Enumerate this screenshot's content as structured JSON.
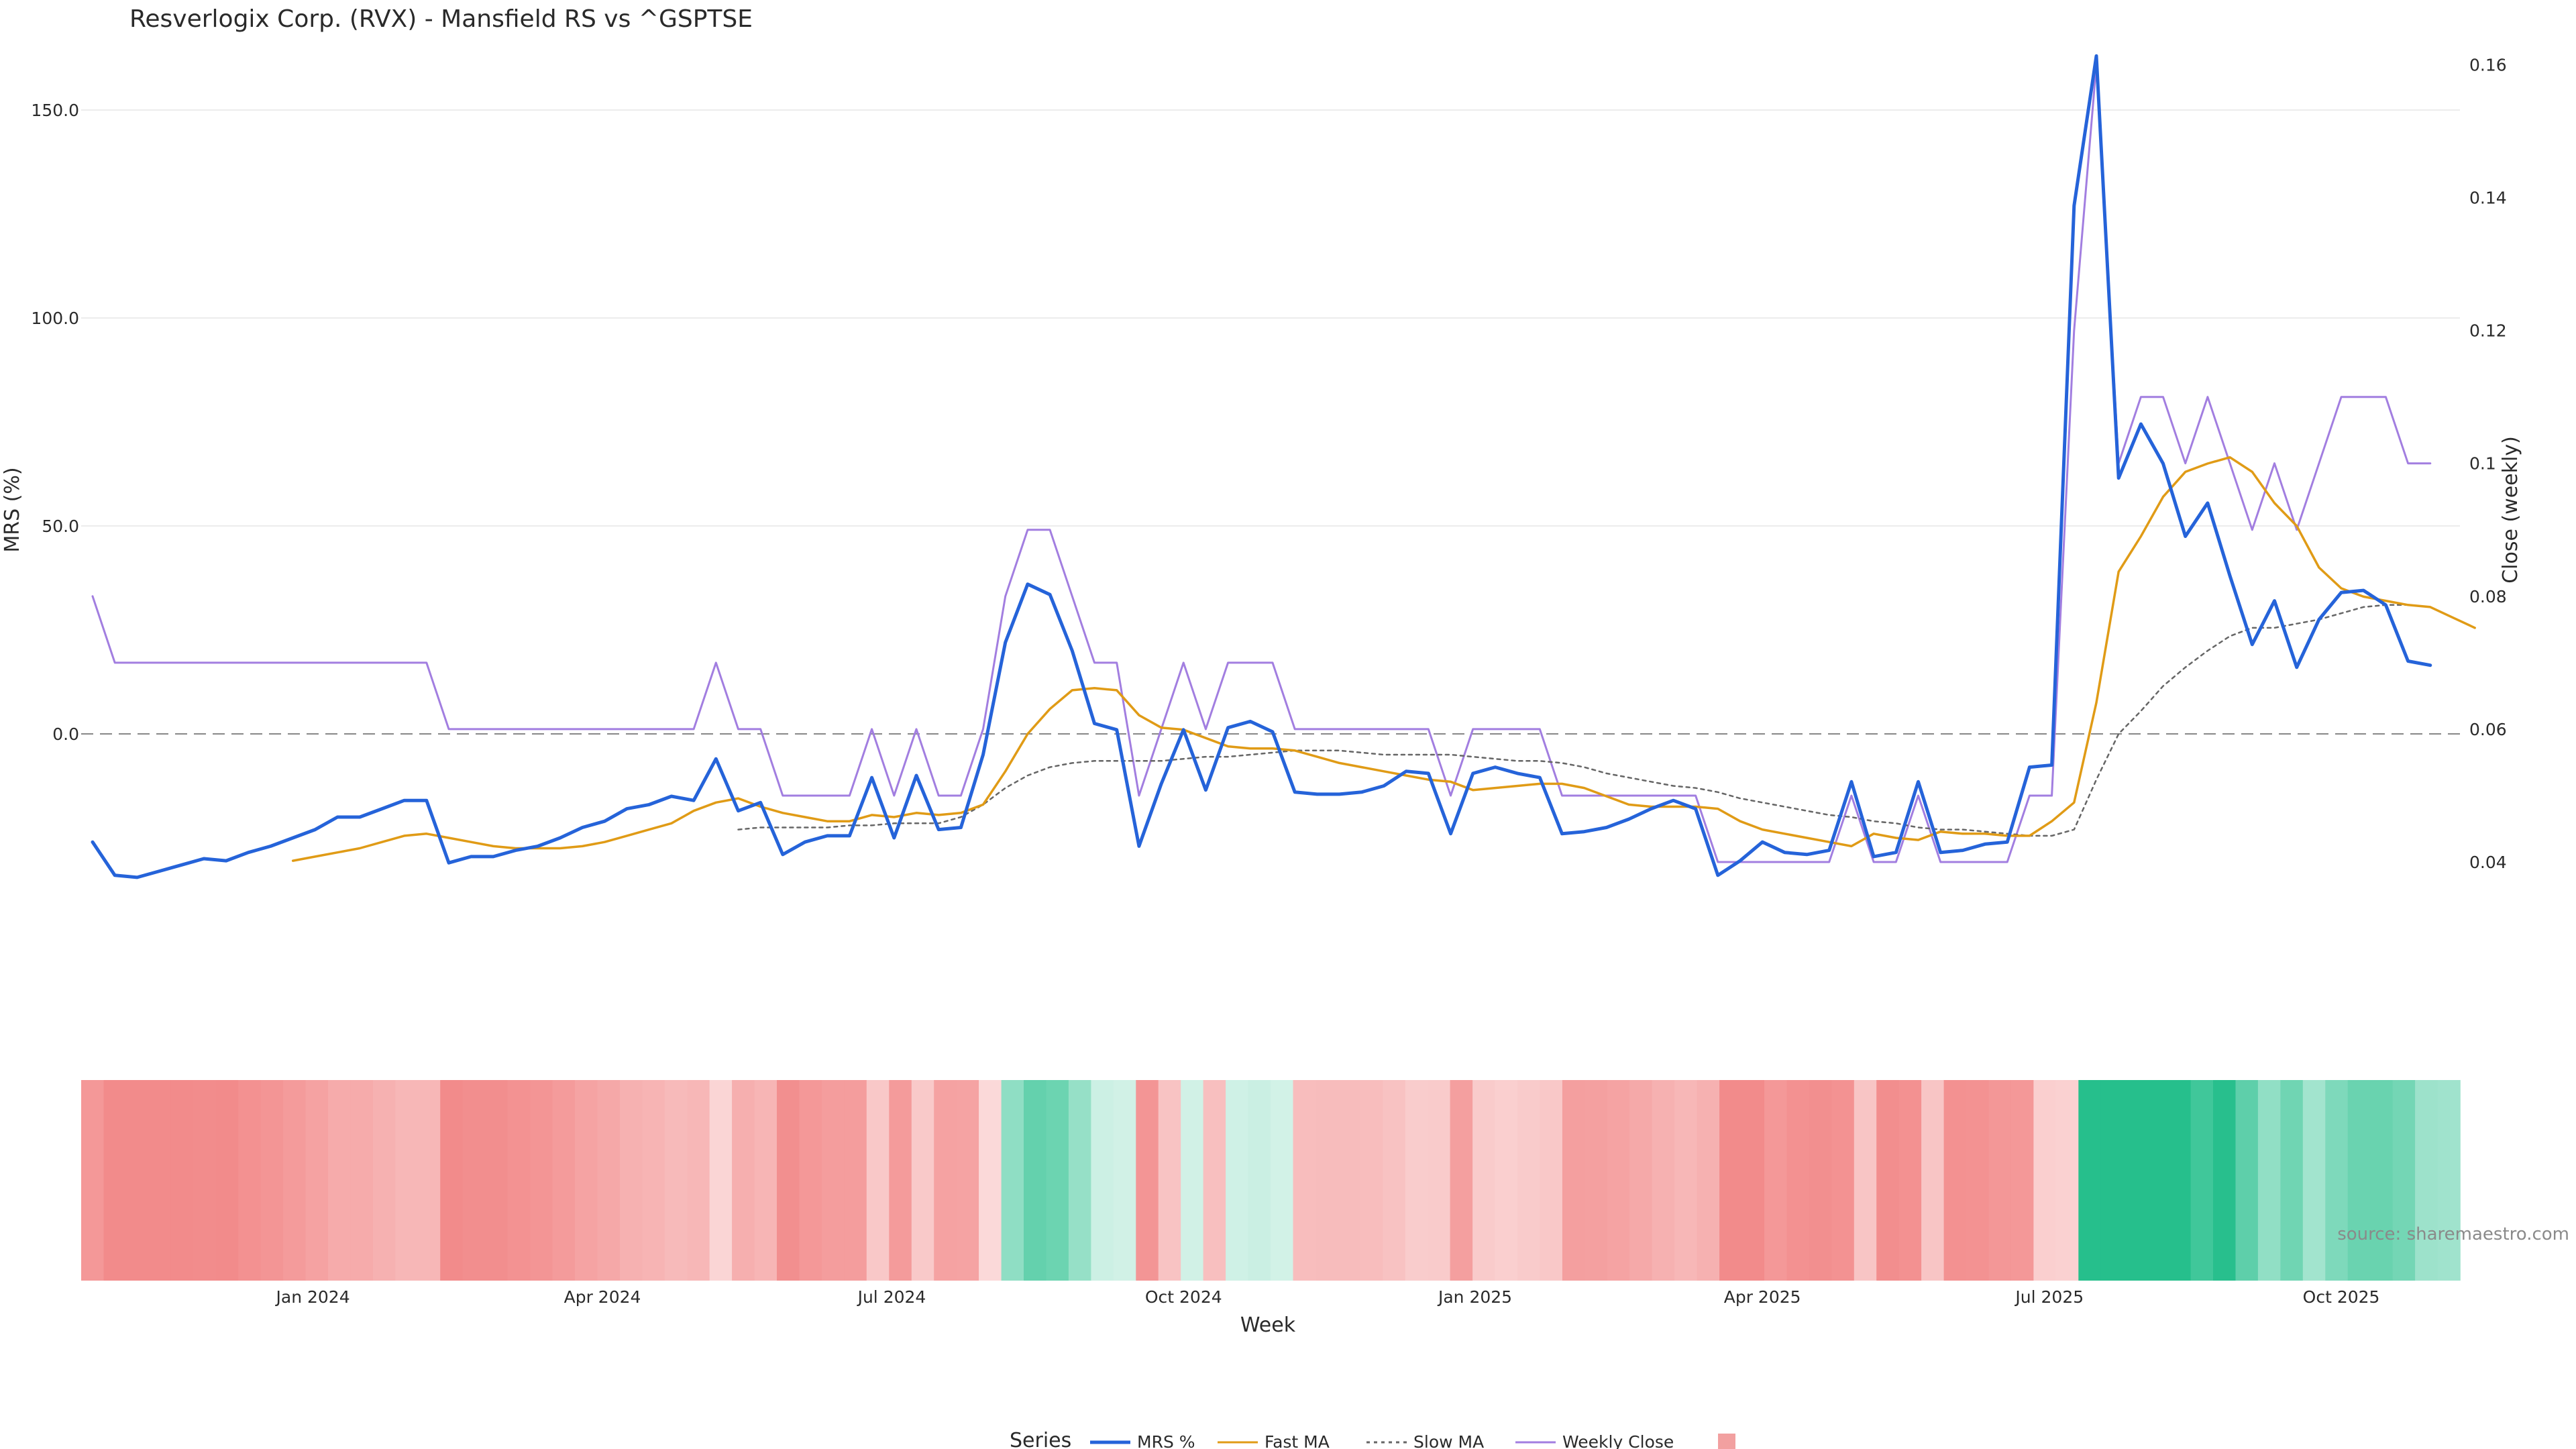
{
  "chart_data": {
    "type": "line",
    "title": "Resverlogix Corp. (RVX) - Mansfield RS vs ^GSPTSE",
    "ylabel_left": "MRS (%)",
    "ylabel_right": "Close (weekly)",
    "xlabel": "Week",
    "ylim_left": [
      -65,
      170
    ],
    "ylim_right": [
      0.0186,
      0.1657
    ],
    "left_ticks": [
      0,
      50,
      100,
      150
    ],
    "left_tick_labels": [
      "0.0",
      "50.0",
      "100.0",
      "150.0"
    ],
    "right_ticks": [
      0.04,
      0.06,
      0.08,
      0.1,
      0.12,
      0.14,
      0.16
    ],
    "right_tick_labels": [
      "0.04",
      "0.06",
      "0.08",
      "0.1",
      "0.12",
      "0.14",
      "0.16"
    ],
    "x_start_week": 0,
    "x_end_week": 106,
    "x_ticks": [
      {
        "week": 9.9,
        "label": "Jan 2024"
      },
      {
        "week": 22.9,
        "label": "Apr 2024"
      },
      {
        "week": 35.9,
        "label": "Jul 2024"
      },
      {
        "week": 49.0,
        "label": "Oct 2024"
      },
      {
        "week": 62.1,
        "label": "Jan 2025"
      },
      {
        "week": 75.0,
        "label": "Apr 2025"
      },
      {
        "week": 87.9,
        "label": "Jul 2025"
      },
      {
        "week": 101.0,
        "label": "Oct 2025"
      }
    ],
    "zero_line": 0,
    "series": [
      {
        "name": "MRS %",
        "axis": "left",
        "color": "#2563d9",
        "style": "solid",
        "start_week": 0,
        "values": [
          -26,
          -34,
          -34.5,
          -33,
          -31.5,
          -30,
          -30.5,
          -28.5,
          -27,
          -25,
          -23,
          -20,
          -20,
          -18,
          -16,
          -16,
          -31,
          -29.5,
          -29.5,
          -28,
          -27,
          -25,
          -22.5,
          -21,
          -18,
          -17,
          -15,
          -16,
          -6,
          -18.5,
          -16.5,
          -29,
          -26,
          -24.5,
          -24.5,
          -10.5,
          -25,
          -10,
          -23,
          -22.5,
          -5,
          22,
          36,
          33.5,
          20,
          2.5,
          1,
          -27,
          -12,
          1,
          -13.5,
          1.5,
          3,
          0.5,
          -14,
          -14.5,
          -14.5,
          -14,
          -12.5,
          -9,
          -9.5,
          -24,
          -9.5,
          -8,
          -9.5,
          -10.5,
          -24,
          -23.5,
          -22.5,
          -20.5,
          -18,
          -16,
          -18,
          -34,
          -30.5,
          -26,
          -28.5,
          -29,
          -28,
          -11.5,
          -29.5,
          -28.5,
          -11.5,
          -28.5,
          -28,
          -26.5,
          -26,
          -8,
          -7.5,
          127,
          163,
          61.5,
          74.5,
          65,
          47.5,
          55.5,
          38,
          21.5,
          32,
          16,
          27.5,
          34,
          34.5,
          31,
          17.5,
          16.5
        ]
      },
      {
        "name": "Fast MA",
        "axis": "left",
        "color": "#e09b16",
        "style": "solid",
        "start_week": 9,
        "values": [
          -30.5,
          -29.5,
          -28.5,
          -27.5,
          -26,
          -24.5,
          -24,
          -25,
          -26,
          -27,
          -27.5,
          -27.5,
          -27.5,
          -27,
          -26,
          -24.5,
          -23,
          -21.5,
          -18.5,
          -16.5,
          -15.5,
          -17.5,
          -19,
          -20,
          -21,
          -21,
          -19.5,
          -20,
          -19,
          -19.5,
          -19,
          -17,
          -9,
          0,
          6,
          10.5,
          11,
          10.5,
          4.5,
          1.5,
          1,
          -1,
          -3,
          -3.5,
          -3.5,
          -4,
          -5.5,
          -7,
          -8,
          -9,
          -10,
          -11,
          -11.5,
          -13.5,
          -13,
          -12.5,
          -12,
          -12,
          -13,
          -15,
          -17,
          -17.5,
          -17.5,
          -17.5,
          -18,
          -21,
          -23,
          -24,
          -25,
          -26,
          -27,
          -24,
          -25,
          -25.5,
          -23.5,
          -24,
          -24,
          -24.5,
          -24.5,
          -21,
          -16.5,
          7.5,
          39,
          47.5,
          57,
          63,
          65,
          66.5,
          63,
          55.5,
          50,
          40,
          35,
          33,
          32,
          31,
          30.5,
          28,
          25.5
        ]
      },
      {
        "name": "Slow MA",
        "axis": "left",
        "color": "#666666",
        "style": "dotted",
        "start_week": 29,
        "values": [
          -23,
          -22.5,
          -22.5,
          -22.5,
          -22.5,
          -22,
          -22,
          -21.5,
          -21.5,
          -21.5,
          -20,
          -17,
          -13,
          -10,
          -8,
          -7,
          -6.5,
          -6.5,
          -6.5,
          -6.5,
          -6,
          -5.5,
          -5.5,
          -5,
          -4.5,
          -4,
          -4,
          -4,
          -4.5,
          -5,
          -5,
          -5,
          -5,
          -5.5,
          -6,
          -6.5,
          -6.5,
          -7,
          -8,
          -9.5,
          -10.5,
          -11.5,
          -12.5,
          -13,
          -14,
          -15.5,
          -16.5,
          -17.5,
          -18.5,
          -19.5,
          -20,
          -21,
          -21.5,
          -22.5,
          -23,
          -23,
          -23.5,
          -24,
          -24.5,
          -24.5,
          -23,
          -11,
          0,
          5.5,
          11.5,
          16,
          20,
          23.5,
          25.5,
          25.5,
          26.5,
          27.5,
          29,
          30.5,
          31,
          31
        ]
      },
      {
        "name": "Weekly Close",
        "axis": "right",
        "color": "#a27ee0",
        "style": "solid",
        "start_week": 0,
        "values": [
          0.08,
          0.07,
          0.07,
          0.07,
          0.07,
          0.07,
          0.07,
          0.07,
          0.07,
          0.07,
          0.07,
          0.07,
          0.07,
          0.07,
          0.07,
          0.07,
          0.06,
          0.06,
          0.06,
          0.06,
          0.06,
          0.06,
          0.06,
          0.06,
          0.06,
          0.06,
          0.06,
          0.06,
          0.07,
          0.06,
          0.06,
          0.05,
          0.05,
          0.05,
          0.05,
          0.06,
          0.05,
          0.06,
          0.05,
          0.05,
          0.06,
          0.08,
          0.09,
          0.09,
          0.08,
          0.07,
          0.07,
          0.05,
          0.06,
          0.07,
          0.06,
          0.07,
          0.07,
          0.07,
          0.06,
          0.06,
          0.06,
          0.06,
          0.06,
          0.06,
          0.06,
          0.05,
          0.06,
          0.06,
          0.06,
          0.06,
          0.05,
          0.05,
          0.05,
          0.05,
          0.05,
          0.05,
          0.05,
          0.04,
          0.04,
          0.04,
          0.04,
          0.04,
          0.04,
          0.05,
          0.04,
          0.04,
          0.05,
          0.04,
          0.04,
          0.04,
          0.04,
          0.05,
          0.05,
          0.12,
          0.16,
          0.1,
          0.11,
          0.11,
          0.1,
          0.11,
          0.1,
          0.09,
          0.1,
          0.09,
          0.1,
          0.11,
          0.11,
          0.11,
          0.1,
          0.1
        ]
      }
    ],
    "heat_strip": {
      "description": "per-week MRS colour band",
      "weeks": 106,
      "values": [
        -26,
        -34,
        -34.5,
        -33,
        -31.5,
        -30,
        -30.5,
        -28.5,
        -27,
        -25,
        -23,
        -20,
        -20,
        -18,
        -16,
        -16,
        -31,
        -29.5,
        -29.5,
        -28,
        -27,
        -25,
        -22.5,
        -21,
        -18,
        -17,
        -15,
        -16,
        -6,
        -18.5,
        -16.5,
        -29,
        -26,
        -24.5,
        -24.5,
        -10.5,
        -25,
        -10,
        -23,
        -22.5,
        -5,
        22,
        36,
        33.5,
        20,
        2.5,
        1,
        -27,
        -12,
        1,
        -13.5,
        1.5,
        3,
        0.5,
        -14,
        -14.5,
        -14.5,
        -14,
        -12.5,
        -9,
        -9.5,
        -24,
        -9.5,
        -8,
        -9.5,
        -10.5,
        -24,
        -23.5,
        -22.5,
        -20.5,
        -18,
        -16,
        -18,
        -34,
        -30.5,
        -26,
        -28.5,
        -29,
        -28,
        -11.5,
        -29.5,
        -28.5,
        -11.5,
        -28.5,
        -28,
        -26.5,
        -26,
        -8,
        -7.5,
        127,
        163,
        61.5,
        74.5,
        65,
        47.5,
        55.5,
        38,
        21.5,
        32,
        16,
        27.5,
        34,
        34.5,
        31,
        17.5,
        16.5
      ],
      "positive_color": "#26bf8c",
      "negative_color": "#f28b8b"
    },
    "legend": {
      "title": "Series",
      "placement": "bottom-center",
      "entries": [
        "MRS %",
        "Fast MA",
        "Slow MA",
        "Weekly Close",
        ""
      ]
    },
    "watermark": "source: sharemaestro.com",
    "colors": {
      "grid": "#ececec",
      "zero_line": "#888888",
      "heat_swatch": "#f2a0a0"
    }
  }
}
